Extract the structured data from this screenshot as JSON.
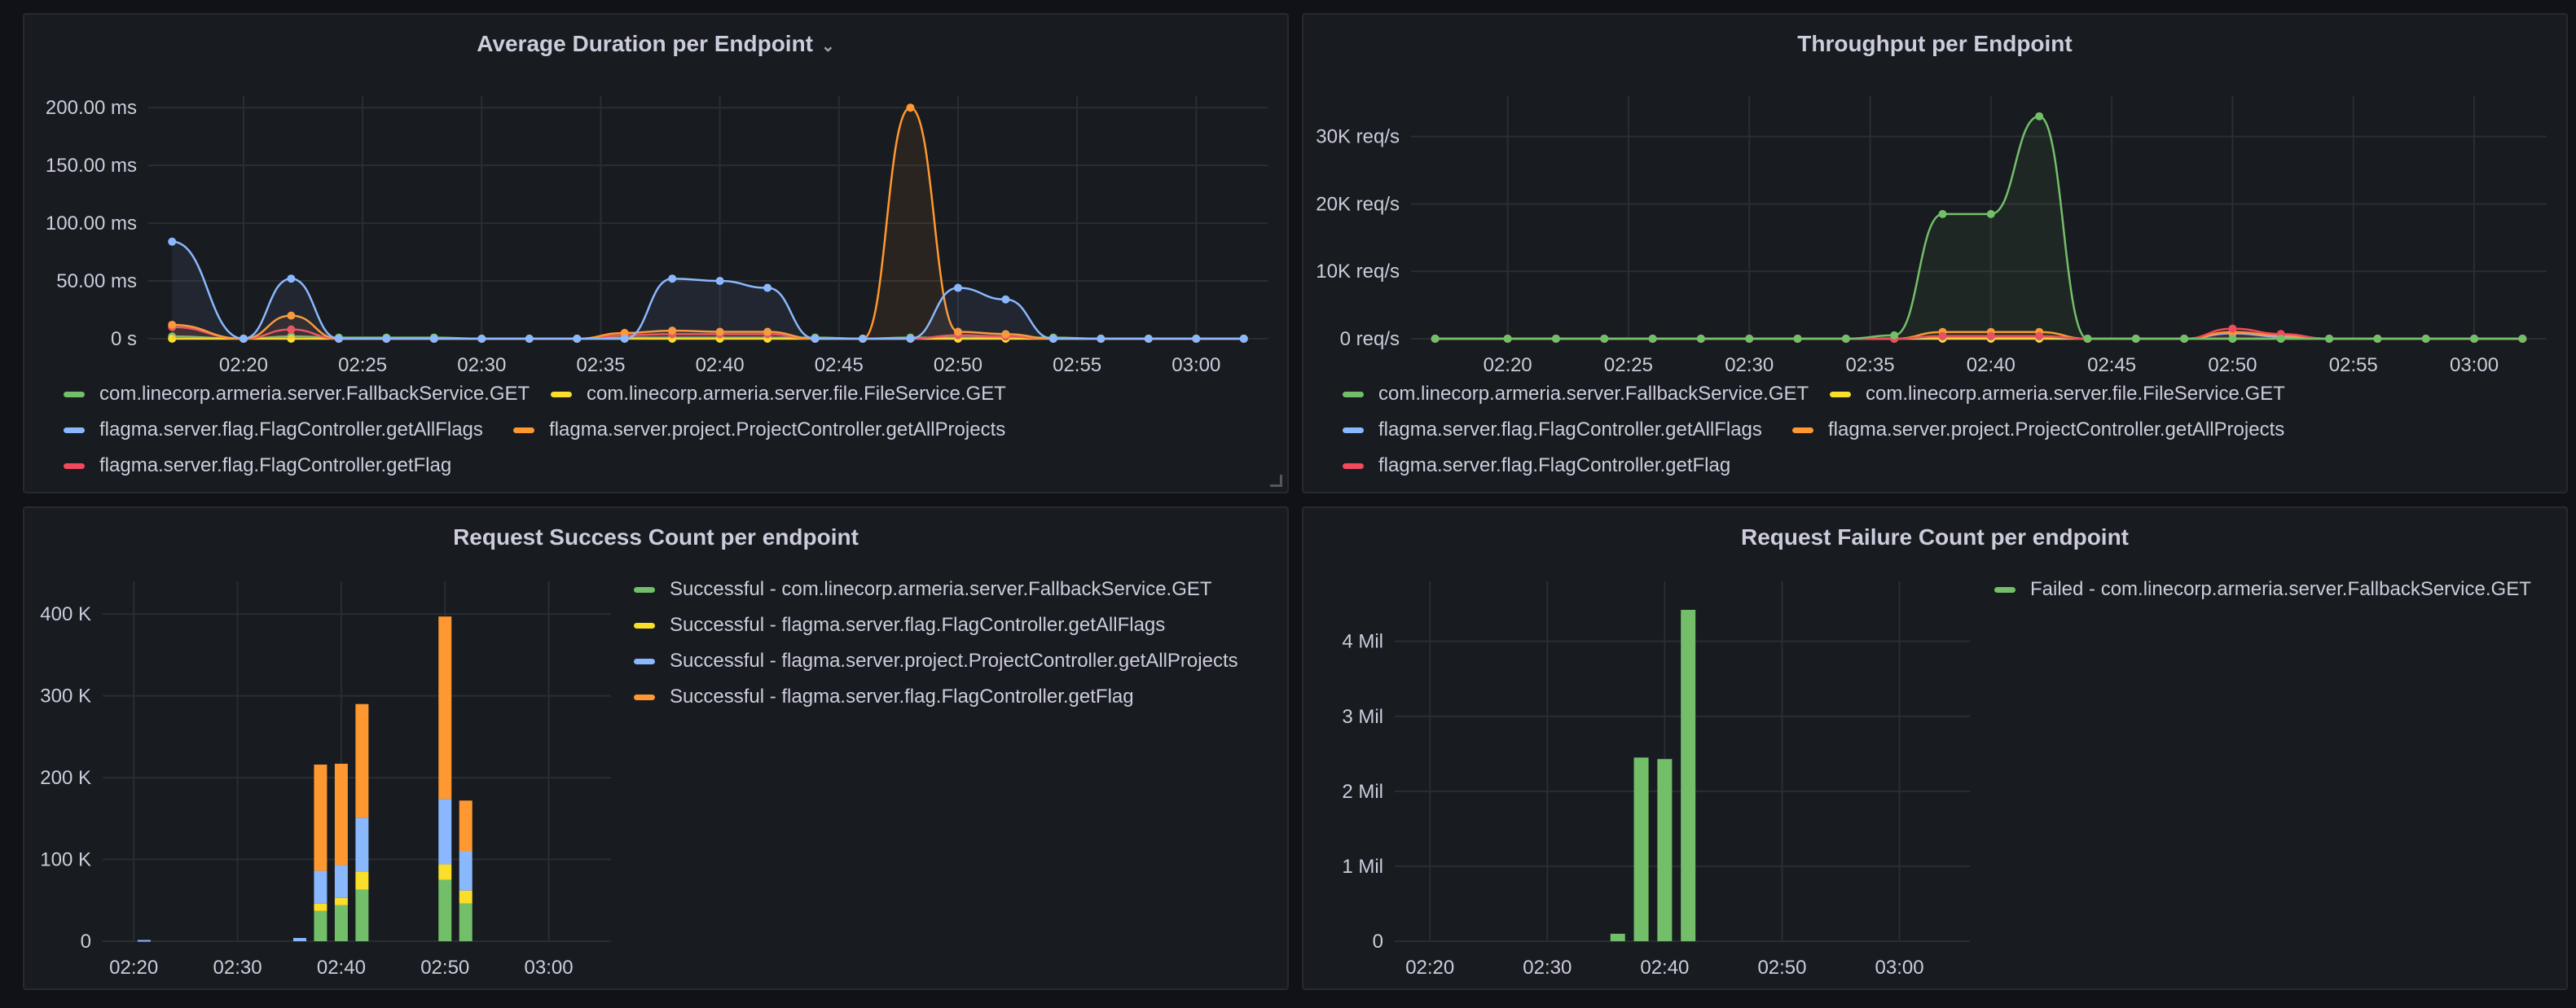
{
  "colors": {
    "green": "#73bf69",
    "yellow": "#fade2a",
    "blue": "#8ab8ff",
    "orange": "#ff9830",
    "red": "#f2495c",
    "grid": "#2a2d33"
  },
  "panels": {
    "avg_duration": {
      "title": "Average Duration per Endpoint",
      "chevron": "⌄",
      "legend": [
        {
          "label": "com.linecorp.armeria.server.FallbackService.GET",
          "color": "#73bf69"
        },
        {
          "label": "com.linecorp.armeria.server.file.FileService.GET",
          "color": "#fade2a"
        },
        {
          "label": "flagma.server.flag.FlagController.getAllFlags",
          "color": "#8ab8ff"
        },
        {
          "label": "flagma.server.project.ProjectController.getAllProjects",
          "color": "#ff9830"
        },
        {
          "label": "flagma.server.flag.FlagController.getFlag",
          "color": "#f2495c"
        }
      ],
      "x_ticks": [
        "02:20",
        "02:25",
        "02:30",
        "02:35",
        "02:40",
        "02:45",
        "02:50",
        "02:55",
        "03:00"
      ],
      "y_ticks": [
        "0 s",
        "50.00 ms",
        "100.00 ms",
        "150.00 ms",
        "200.00 ms"
      ]
    },
    "throughput": {
      "title": "Throughput per Endpoint",
      "legend": [
        {
          "label": "com.linecorp.armeria.server.FallbackService.GET",
          "color": "#73bf69"
        },
        {
          "label": "com.linecorp.armeria.server.file.FileService.GET",
          "color": "#fade2a"
        },
        {
          "label": "flagma.server.flag.FlagController.getAllFlags",
          "color": "#8ab8ff"
        },
        {
          "label": "flagma.server.project.ProjectController.getAllProjects",
          "color": "#ff9830"
        },
        {
          "label": "flagma.server.flag.FlagController.getFlag",
          "color": "#f2495c"
        }
      ],
      "x_ticks": [
        "02:20",
        "02:25",
        "02:30",
        "02:35",
        "02:40",
        "02:45",
        "02:50",
        "02:55",
        "03:00"
      ],
      "y_ticks": [
        "0 req/s",
        "10K req/s",
        "20K req/s",
        "30K req/s"
      ]
    },
    "success": {
      "title": "Request Success Count per endpoint",
      "legend": [
        {
          "label": "Successful - com.linecorp.armeria.server.FallbackService.GET",
          "color": "#73bf69"
        },
        {
          "label": "Successful - flagma.server.flag.FlagController.getAllFlags",
          "color": "#fade2a"
        },
        {
          "label": "Successful - flagma.server.project.ProjectController.getAllProjects",
          "color": "#8ab8ff"
        },
        {
          "label": "Successful - flagma.server.flag.FlagController.getFlag",
          "color": "#ff9830"
        }
      ],
      "x_ticks": [
        "02:20",
        "02:30",
        "02:40",
        "02:50",
        "03:00"
      ],
      "y_ticks": [
        "0",
        "100 K",
        "200 K",
        "300 K",
        "400 K"
      ]
    },
    "failure": {
      "title": "Request Failure Count per endpoint",
      "legend": [
        {
          "label": "Failed - com.linecorp.armeria.server.FallbackService.GET",
          "color": "#73bf69"
        }
      ],
      "x_ticks": [
        "02:20",
        "02:30",
        "02:40",
        "02:50",
        "03:00"
      ],
      "y_ticks": [
        "0",
        "1 Mil",
        "2 Mil",
        "3 Mil",
        "4 Mil"
      ]
    }
  },
  "chart_data": [
    {
      "type": "line",
      "title": "Average Duration per Endpoint",
      "ylabel": "",
      "unit": "ms",
      "ylim": [
        0,
        210
      ],
      "x": [
        "02:17",
        "02:20",
        "02:22",
        "02:24",
        "02:26",
        "02:28",
        "02:30",
        "02:32",
        "02:34",
        "02:36",
        "02:38",
        "02:40",
        "02:42",
        "02:44",
        "02:46",
        "02:48",
        "02:50",
        "02:52",
        "02:54",
        "02:56",
        "02:58",
        "03:00",
        "03:02"
      ],
      "series": [
        {
          "name": "com.linecorp.armeria.server.FallbackService.GET",
          "color": "#73bf69",
          "values": [
            2,
            0,
            2,
            1,
            1,
            1,
            0,
            0,
            0,
            1,
            1,
            1,
            1,
            1,
            0,
            1,
            1,
            1,
            1,
            0,
            0,
            0,
            0
          ]
        },
        {
          "name": "com.linecorp.armeria.server.file.FileService.GET",
          "color": "#fade2a",
          "values": [
            0,
            0,
            0,
            0,
            0,
            0,
            0,
            0,
            0,
            0,
            0,
            0,
            0,
            0,
            0,
            0,
            0,
            0,
            0,
            0,
            0,
            0,
            0
          ]
        },
        {
          "name": "flagma.server.flag.FlagController.getAllFlags",
          "color": "#8ab8ff",
          "values": [
            84,
            0,
            52,
            0,
            0,
            0,
            0,
            0,
            0,
            0,
            52,
            50,
            44,
            0,
            0,
            0,
            44,
            34,
            0,
            0,
            0,
            0,
            0
          ]
        },
        {
          "name": "flagma.server.project.ProjectController.getAllProjects",
          "color": "#ff9830",
          "values": [
            12,
            0,
            20,
            0,
            0,
            0,
            0,
            0,
            0,
            5,
            7,
            6,
            6,
            0,
            0,
            200,
            6,
            4,
            0,
            0,
            0,
            0,
            0
          ]
        },
        {
          "name": "flagma.server.flag.FlagController.getFlag",
          "color": "#f2495c",
          "values": [
            10,
            0,
            8,
            0,
            0,
            0,
            0,
            0,
            0,
            3,
            4,
            4,
            4,
            0,
            0,
            0,
            3,
            2,
            0,
            0,
            0,
            0,
            0
          ]
        }
      ]
    },
    {
      "type": "line",
      "title": "Throughput per Endpoint",
      "ylabel": "",
      "unit": "req/s",
      "ylim": [
        0,
        36000
      ],
      "x": [
        "02:17",
        "02:20",
        "02:22",
        "02:24",
        "02:26",
        "02:28",
        "02:30",
        "02:32",
        "02:34",
        "02:36",
        "02:38",
        "02:40",
        "02:42",
        "02:44",
        "02:46",
        "02:48",
        "02:50",
        "02:52",
        "02:54",
        "02:56",
        "02:58",
        "03:00",
        "03:02"
      ],
      "series": [
        {
          "name": "com.linecorp.armeria.server.FallbackService.GET",
          "color": "#73bf69",
          "values": [
            0,
            0,
            0,
            0,
            0,
            0,
            0,
            0,
            0,
            500,
            18500,
            18500,
            33000,
            0,
            0,
            0,
            0,
            0,
            0,
            0,
            0,
            0,
            0
          ]
        },
        {
          "name": "com.linecorp.armeria.server.file.FileService.GET",
          "color": "#fade2a",
          "values": [
            0,
            0,
            0,
            0,
            0,
            0,
            0,
            0,
            0,
            0,
            0,
            0,
            0,
            0,
            0,
            0,
            0,
            0,
            0,
            0,
            0,
            0,
            0
          ]
        },
        {
          "name": "flagma.server.flag.FlagController.getAllFlags",
          "color": "#8ab8ff",
          "values": [
            0,
            0,
            0,
            0,
            0,
            0,
            0,
            0,
            0,
            0,
            300,
            300,
            300,
            0,
            0,
            0,
            800,
            300,
            0,
            0,
            0,
            0,
            0
          ]
        },
        {
          "name": "flagma.server.project.ProjectController.getAllProjects",
          "color": "#ff9830",
          "values": [
            0,
            0,
            0,
            0,
            0,
            0,
            0,
            0,
            0,
            0,
            1000,
            1000,
            1000,
            0,
            0,
            0,
            1000,
            500,
            0,
            0,
            0,
            0,
            0
          ]
        },
        {
          "name": "flagma.server.flag.FlagController.getFlag",
          "color": "#f2495c",
          "values": [
            0,
            0,
            0,
            0,
            0,
            0,
            0,
            0,
            0,
            0,
            400,
            400,
            400,
            0,
            0,
            0,
            1500,
            700,
            0,
            0,
            0,
            0,
            0
          ]
        }
      ]
    },
    {
      "type": "bar",
      "stacked": true,
      "title": "Request Success Count per endpoint",
      "ylabel": "",
      "ylim": [
        0,
        440000
      ],
      "categories": [
        "02:21",
        "02:36",
        "02:38",
        "02:40",
        "02:42",
        "02:50",
        "02:52"
      ],
      "series": [
        {
          "name": "Successful - com.linecorp.armeria.server.FallbackService.GET",
          "color": "#73bf69",
          "values": [
            0,
            0,
            37000,
            44000,
            63000,
            75000,
            46000
          ]
        },
        {
          "name": "Successful - flagma.server.flag.FlagController.getAllFlags",
          "color": "#fade2a",
          "values": [
            0,
            0,
            9000,
            9000,
            22000,
            19000,
            16000
          ]
        },
        {
          "name": "Successful - flagma.server.project.ProjectController.getAllProjects",
          "color": "#8ab8ff",
          "values": [
            1500,
            4000,
            40000,
            40000,
            66000,
            80000,
            48000
          ]
        },
        {
          "name": "Successful - flagma.server.flag.FlagController.getFlag",
          "color": "#ff9830",
          "values": [
            0,
            0,
            130000,
            124000,
            139000,
            223000,
            62000
          ]
        }
      ]
    },
    {
      "type": "bar",
      "title": "Request Failure Count per endpoint",
      "ylabel": "",
      "ylim": [
        0,
        4800000
      ],
      "categories": [
        "02:36",
        "02:38",
        "02:40",
        "02:42"
      ],
      "series": [
        {
          "name": "Failed - com.linecorp.armeria.server.FallbackService.GET",
          "color": "#73bf69",
          "values": [
            100000,
            2450000,
            2430000,
            4420000
          ]
        }
      ]
    }
  ]
}
